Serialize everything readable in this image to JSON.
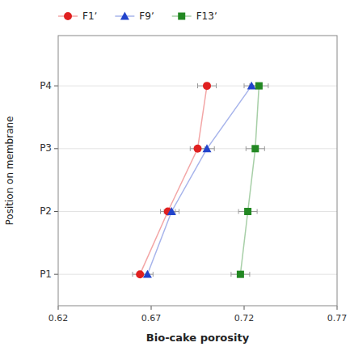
{
  "chart_data": {
    "type": "line",
    "orientation": "horizontal",
    "xlabel": "Bio-cake porosity",
    "ylabel": "Position on membrane",
    "y": [
      1,
      2,
      3,
      4
    ],
    "yticks": [
      {
        "value": 1,
        "label": "P1"
      },
      {
        "value": 2,
        "label": "P2"
      },
      {
        "value": 3,
        "label": "P3"
      },
      {
        "value": 4,
        "label": "P4"
      }
    ],
    "ylim": [
      0.5,
      4.8
    ],
    "xlim": [
      0.62,
      0.77
    ],
    "xticks": [
      0.62,
      0.67,
      0.72,
      0.77
    ],
    "grid": "y",
    "legend": "top",
    "series": [
      {
        "name": "F1ʼ",
        "color": "#e02020",
        "marker": "circle",
        "values": [
          0.664,
          0.679,
          0.695,
          0.7
        ],
        "errors": [
          0.004,
          0.004,
          0.004,
          0.005
        ]
      },
      {
        "name": "F9ʼ",
        "color": "#2244cc",
        "marker": "triangle",
        "values": [
          0.668,
          0.681,
          0.7,
          0.724
        ],
        "errors": [
          0.003,
          0.004,
          0.004,
          0.004
        ]
      },
      {
        "name": "F13ʼ",
        "color": "#228822",
        "marker": "square",
        "values": [
          0.718,
          0.722,
          0.726,
          0.728
        ],
        "errors": [
          0.005,
          0.005,
          0.005,
          0.005
        ]
      }
    ]
  }
}
